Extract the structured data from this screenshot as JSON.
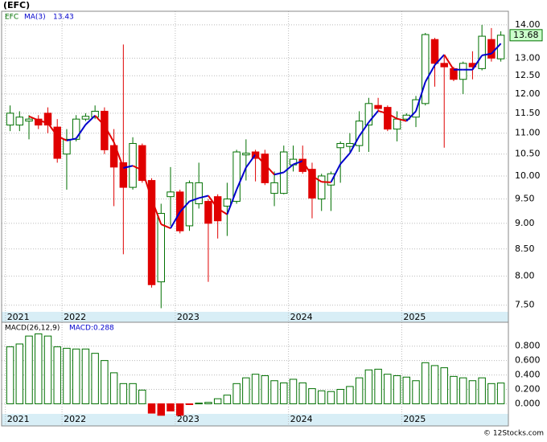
{
  "chart_data": [
    {
      "type": "candlestick",
      "title": "(EFC)",
      "ticker": "EFC",
      "categories": [
        null,
        null,
        null,
        null,
        null,
        null,
        null,
        null,
        null,
        null,
        null,
        null,
        null,
        null,
        null,
        null,
        null,
        null,
        null,
        null,
        null,
        null,
        null,
        null,
        null,
        null,
        null,
        null,
        null,
        null,
        null,
        null,
        null,
        null,
        null,
        null,
        null,
        null,
        null,
        null,
        null,
        null,
        null,
        null,
        null,
        null,
        null,
        null,
        null,
        null,
        null,
        null,
        null
      ],
      "open": [
        11.2,
        11.2,
        11.3,
        11.35,
        11.5,
        11.15,
        10.5,
        10.85,
        11.35,
        11.4,
        11.55,
        10.7,
        10.3,
        9.75,
        10.7,
        9.9,
        7.9,
        9.55,
        9.65,
        8.95,
        9.4,
        9.45,
        9.55,
        9.35,
        9.45,
        10.48,
        10.55,
        10.5,
        9.62,
        9.62,
        10.25,
        10.38,
        10.15,
        9.5,
        9.8,
        10.65,
        10.68,
        10.7,
        11.2,
        11.7,
        11.65,
        11.1,
        11.35,
        11.4,
        11.75,
        13.55,
        12.85,
        12.7,
        12.4,
        12.85,
        12.7,
        13.55,
        12.98
      ],
      "high": [
        11.7,
        11.55,
        11.45,
        11.45,
        11.65,
        11.35,
        11.1,
        11.45,
        11.5,
        11.7,
        11.65,
        11.1,
        13.4,
        10.9,
        10.75,
        9.95,
        9.4,
        10.2,
        9.7,
        9.9,
        10.3,
        9.5,
        9.6,
        9.85,
        10.6,
        10.85,
        10.6,
        10.6,
        10.1,
        10.7,
        10.7,
        10.7,
        10.3,
        10.05,
        10.1,
        10.8,
        11.0,
        11.55,
        11.9,
        11.9,
        11.7,
        11.55,
        11.5,
        11.95,
        13.75,
        13.6,
        13.05,
        12.75,
        12.9,
        13.2,
        14.0,
        13.9,
        13.8
      ],
      "low": [
        11.05,
        11.05,
        10.85,
        11.1,
        11.0,
        10.3,
        9.7,
        10.8,
        11.3,
        11.35,
        10.5,
        9.35,
        8.4,
        9.7,
        9.85,
        7.8,
        7.45,
        8.95,
        8.8,
        8.85,
        9.3,
        7.9,
        8.7,
        8.75,
        9.4,
        9.9,
        9.88,
        9.8,
        9.35,
        9.6,
        10.1,
        10.05,
        9.1,
        9.25,
        9.25,
        9.85,
        10.55,
        10.55,
        10.55,
        11.55,
        11.05,
        10.8,
        11.3,
        11.15,
        11.7,
        12.2,
        10.65,
        12.35,
        12.0,
        12.4,
        12.65,
        12.9,
        12.9
      ],
      "close": [
        11.5,
        11.4,
        11.35,
        11.2,
        11.2,
        10.4,
        10.85,
        11.35,
        11.42,
        11.55,
        10.6,
        10.2,
        9.75,
        10.75,
        9.9,
        7.85,
        9.2,
        9.65,
        8.85,
        9.85,
        9.85,
        9.0,
        9.05,
        9.5,
        10.55,
        10.52,
        10.4,
        9.85,
        9.85,
        10.55,
        10.38,
        10.1,
        9.52,
        10.0,
        10.05,
        10.75,
        10.75,
        11.3,
        11.75,
        11.62,
        11.1,
        11.35,
        11.45,
        11.85,
        13.7,
        12.85,
        12.75,
        12.4,
        12.85,
        12.75,
        13.65,
        13.0,
        13.68
      ],
      "up_color": "#007000",
      "down_color": "#e00000",
      "ma": {
        "name": "MA(3)",
        "color": "#0000cc",
        "down_color": "#e00000",
        "values": [
          null,
          null,
          11.42,
          11.32,
          11.25,
          10.93,
          10.82,
          10.87,
          11.21,
          11.44,
          11.19,
          10.78,
          10.18,
          10.23,
          10.13,
          9.5,
          8.98,
          8.9,
          9.23,
          9.45,
          9.52,
          9.57,
          9.3,
          9.18,
          9.7,
          10.19,
          10.49,
          10.26,
          10.03,
          10.08,
          10.26,
          10.34,
          10.0,
          9.87,
          9.86,
          10.27,
          10.52,
          10.93,
          11.27,
          11.56,
          11.49,
          11.36,
          11.3,
          11.55,
          12.33,
          12.8,
          13.1,
          12.67,
          12.67,
          12.67,
          13.08,
          13.13,
          13.43
        ]
      },
      "xlim": [
        -0.9,
        52.8
      ],
      "xticks": [
        {
          "value": -0.5,
          "label": "2021"
        },
        {
          "value": 5.5,
          "label": "2022"
        },
        {
          "value": 17.5,
          "label": "2023"
        },
        {
          "value": 29.5,
          "label": "2024"
        },
        {
          "value": 41.5,
          "label": "2025"
        }
      ],
      "log_scale": true,
      "ylim": [
        7.39,
        14.43
      ],
      "yticks": [
        {
          "value": 7.5,
          "label": "7.50"
        },
        {
          "value": 8,
          "label": "8.00"
        },
        {
          "value": 8.5,
          "label": "8.50"
        },
        {
          "value": 9,
          "label": "9.00"
        },
        {
          "value": 9.5,
          "label": "9.50"
        },
        {
          "value": 10,
          "label": "10.00"
        },
        {
          "value": 10.5,
          "label": "10.50"
        },
        {
          "value": 11,
          "label": "11.00"
        },
        {
          "value": 11.5,
          "label": "11.50"
        },
        {
          "value": 12,
          "label": "12.00"
        },
        {
          "value": 12.5,
          "label": "12.50"
        },
        {
          "value": 13,
          "label": "13.00"
        },
        {
          "value": 14,
          "label": "14.00"
        }
      ],
      "grid": true
    },
    {
      "type": "bar",
      "name": "MACD(26,12,9)",
      "value_prefix": "MACD:",
      "color": "#007000",
      "negative_color": "#e00000",
      "values": [
        0.79,
        0.83,
        0.94,
        0.97,
        0.94,
        0.79,
        0.77,
        0.76,
        0.76,
        0.7,
        0.6,
        0.43,
        0.28,
        0.28,
        0.19,
        -0.13,
        -0.16,
        -0.1,
        -0.16,
        -0.01,
        0.01,
        0.02,
        0.07,
        0.12,
        0.28,
        0.36,
        0.41,
        0.39,
        0.32,
        0.29,
        0.34,
        0.29,
        0.21,
        0.18,
        0.17,
        0.2,
        0.24,
        0.36,
        0.47,
        0.48,
        0.41,
        0.39,
        0.37,
        0.32,
        0.57,
        0.53,
        0.5,
        0.38,
        0.36,
        0.32,
        0.36,
        0.28,
        0.288
      ],
      "ylim": [
        -0.14,
        1.12
      ],
      "yticks": [
        {
          "value": 0,
          "label": "0.000"
        },
        {
          "value": 0.2,
          "label": "0.200"
        },
        {
          "value": 0.4,
          "label": "0.400"
        },
        {
          "value": 0.6,
          "label": "0.600"
        },
        {
          "value": 0.8,
          "label": "0.800"
        }
      ],
      "grid": true
    }
  ],
  "watermark": "© 12Stocks.com"
}
